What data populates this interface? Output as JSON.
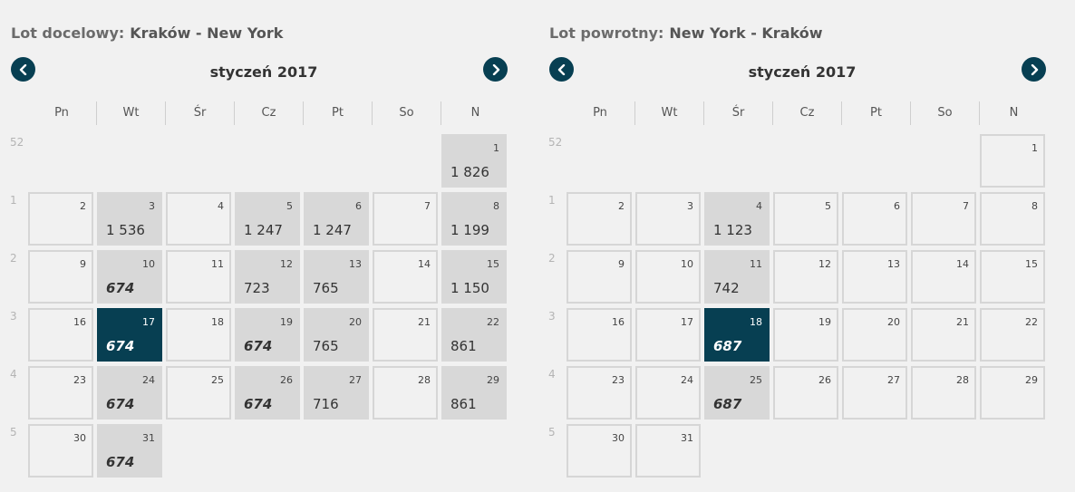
{
  "outbound": {
    "title_prefix": "Lot docelowy:",
    "route": "Kraków - New York",
    "month": "styczeń 2017",
    "weekdays": [
      "Pn",
      "Wt",
      "Śr",
      "Cz",
      "Pt",
      "So",
      "N"
    ],
    "weeks": [
      "52",
      "1",
      "2",
      "3",
      "4",
      "5"
    ],
    "days": [
      {
        "day": "1",
        "price": "1 826",
        "best": false,
        "selected": false
      },
      {
        "day": "2",
        "price": "",
        "best": false,
        "selected": false
      },
      {
        "day": "3",
        "price": "1 536",
        "best": false,
        "selected": false
      },
      {
        "day": "4",
        "price": "",
        "best": false,
        "selected": false
      },
      {
        "day": "5",
        "price": "1 247",
        "best": false,
        "selected": false
      },
      {
        "day": "6",
        "price": "1 247",
        "best": false,
        "selected": false
      },
      {
        "day": "7",
        "price": "",
        "best": false,
        "selected": false
      },
      {
        "day": "8",
        "price": "1 199",
        "best": false,
        "selected": false
      },
      {
        "day": "9",
        "price": "",
        "best": false,
        "selected": false
      },
      {
        "day": "10",
        "price": "674",
        "best": true,
        "selected": false
      },
      {
        "day": "11",
        "price": "",
        "best": false,
        "selected": false
      },
      {
        "day": "12",
        "price": "723",
        "best": false,
        "selected": false
      },
      {
        "day": "13",
        "price": "765",
        "best": false,
        "selected": false
      },
      {
        "day": "14",
        "price": "",
        "best": false,
        "selected": false
      },
      {
        "day": "15",
        "price": "1 150",
        "best": false,
        "selected": false
      },
      {
        "day": "16",
        "price": "",
        "best": false,
        "selected": false
      },
      {
        "day": "17",
        "price": "674",
        "best": true,
        "selected": true
      },
      {
        "day": "18",
        "price": "",
        "best": false,
        "selected": false
      },
      {
        "day": "19",
        "price": "674",
        "best": true,
        "selected": false
      },
      {
        "day": "20",
        "price": "765",
        "best": false,
        "selected": false
      },
      {
        "day": "21",
        "price": "",
        "best": false,
        "selected": false
      },
      {
        "day": "22",
        "price": "861",
        "best": false,
        "selected": false
      },
      {
        "day": "23",
        "price": "",
        "best": false,
        "selected": false
      },
      {
        "day": "24",
        "price": "674",
        "best": true,
        "selected": false
      },
      {
        "day": "25",
        "price": "",
        "best": false,
        "selected": false
      },
      {
        "day": "26",
        "price": "674",
        "best": true,
        "selected": false
      },
      {
        "day": "27",
        "price": "716",
        "best": false,
        "selected": false
      },
      {
        "day": "28",
        "price": "",
        "best": false,
        "selected": false
      },
      {
        "day": "29",
        "price": "861",
        "best": false,
        "selected": false
      },
      {
        "day": "30",
        "price": "",
        "best": false,
        "selected": false
      },
      {
        "day": "31",
        "price": "674",
        "best": true,
        "selected": false
      }
    ]
  },
  "return": {
    "title_prefix": "Lot powrotny:",
    "route": "New York - Kraków",
    "month": "styczeń 2017",
    "weekdays": [
      "Pn",
      "Wt",
      "Śr",
      "Cz",
      "Pt",
      "So",
      "N"
    ],
    "weeks": [
      "52",
      "1",
      "2",
      "3",
      "4",
      "5"
    ],
    "days": [
      {
        "day": "1",
        "price": "",
        "best": false,
        "selected": false
      },
      {
        "day": "2",
        "price": "",
        "best": false,
        "selected": false
      },
      {
        "day": "3",
        "price": "",
        "best": false,
        "selected": false
      },
      {
        "day": "4",
        "price": "1 123",
        "best": false,
        "selected": false
      },
      {
        "day": "5",
        "price": "",
        "best": false,
        "selected": false
      },
      {
        "day": "6",
        "price": "",
        "best": false,
        "selected": false
      },
      {
        "day": "7",
        "price": "",
        "best": false,
        "selected": false
      },
      {
        "day": "8",
        "price": "",
        "best": false,
        "selected": false
      },
      {
        "day": "9",
        "price": "",
        "best": false,
        "selected": false
      },
      {
        "day": "10",
        "price": "",
        "best": false,
        "selected": false
      },
      {
        "day": "11",
        "price": "742",
        "best": false,
        "selected": false
      },
      {
        "day": "12",
        "price": "",
        "best": false,
        "selected": false
      },
      {
        "day": "13",
        "price": "",
        "best": false,
        "selected": false
      },
      {
        "day": "14",
        "price": "",
        "best": false,
        "selected": false
      },
      {
        "day": "15",
        "price": "",
        "best": false,
        "selected": false
      },
      {
        "day": "16",
        "price": "",
        "best": false,
        "selected": false
      },
      {
        "day": "17",
        "price": "",
        "best": false,
        "selected": false
      },
      {
        "day": "18",
        "price": "687",
        "best": true,
        "selected": true
      },
      {
        "day": "19",
        "price": "",
        "best": false,
        "selected": false
      },
      {
        "day": "20",
        "price": "",
        "best": false,
        "selected": false
      },
      {
        "day": "21",
        "price": "",
        "best": false,
        "selected": false
      },
      {
        "day": "22",
        "price": "",
        "best": false,
        "selected": false
      },
      {
        "day": "23",
        "price": "",
        "best": false,
        "selected": false
      },
      {
        "day": "24",
        "price": "",
        "best": false,
        "selected": false
      },
      {
        "day": "25",
        "price": "687",
        "best": true,
        "selected": false
      },
      {
        "day": "26",
        "price": "",
        "best": false,
        "selected": false
      },
      {
        "day": "27",
        "price": "",
        "best": false,
        "selected": false
      },
      {
        "day": "28",
        "price": "",
        "best": false,
        "selected": false
      },
      {
        "day": "29",
        "price": "",
        "best": false,
        "selected": false
      },
      {
        "day": "30",
        "price": "",
        "best": false,
        "selected": false
      },
      {
        "day": "31",
        "price": "",
        "best": false,
        "selected": false
      }
    ]
  }
}
